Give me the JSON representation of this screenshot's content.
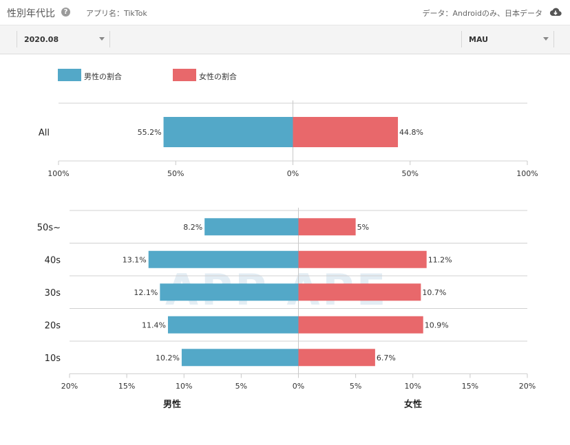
{
  "header": {
    "title": "性別年代比",
    "app_name": "アプリ名：TikTok",
    "data_note": "データ：Androidのみ、日本データ"
  },
  "filters": {
    "period": "2020.08",
    "metric": "MAU"
  },
  "legend": {
    "male": "男性の割合",
    "female": "女性の割合"
  },
  "watermark": "APP APE",
  "colors": {
    "male": "#53a8c8",
    "female": "#e8686b"
  },
  "chart_data": [
    {
      "type": "bar",
      "orientation": "horizontal-diverging",
      "categories": [
        "All"
      ],
      "series": [
        {
          "name": "男性の割合",
          "values": [
            55.2
          ]
        },
        {
          "name": "女性の割合",
          "values": [
            44.8
          ]
        }
      ],
      "value_labels": {
        "male": [
          "55.2%"
        ],
        "female": [
          "44.8%"
        ]
      },
      "xlim": [
        -100,
        100
      ],
      "ticks": [
        -100,
        -50,
        0,
        50,
        100
      ],
      "tick_labels": [
        "100%",
        "50%",
        "0%",
        "50%",
        "100%"
      ]
    },
    {
      "type": "bar",
      "orientation": "horizontal-diverging",
      "categories": [
        "50s~",
        "40s",
        "30s",
        "20s",
        "10s"
      ],
      "series": [
        {
          "name": "男性の割合",
          "values": [
            8.2,
            13.1,
            12.1,
            11.4,
            10.2
          ]
        },
        {
          "name": "女性の割合",
          "values": [
            5,
            11.2,
            10.7,
            10.9,
            6.7
          ]
        }
      ],
      "value_labels": {
        "male": [
          "8.2%",
          "13.1%",
          "12.1%",
          "11.4%",
          "10.2%"
        ],
        "female": [
          "5%",
          "11.2%",
          "10.7%",
          "10.9%",
          "6.7%"
        ]
      },
      "xlim": [
        -20,
        20
      ],
      "ticks": [
        -20,
        -15,
        -10,
        -5,
        0,
        5,
        10,
        15,
        20
      ],
      "tick_labels": [
        "20%",
        "15%",
        "10%",
        "5%",
        "0%",
        "5%",
        "10%",
        "15%",
        "20%"
      ],
      "xlabel_left": "男性",
      "xlabel_right": "女性"
    }
  ]
}
